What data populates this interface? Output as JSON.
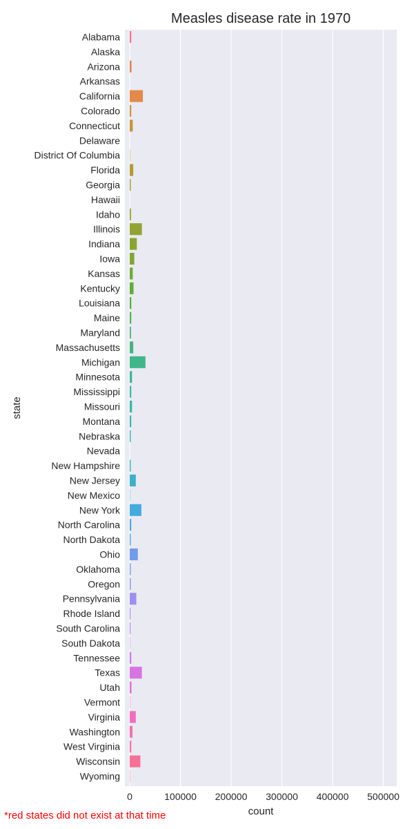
{
  "chart_data": {
    "type": "bar",
    "orientation": "horizontal",
    "title": "Measles disease rate in 1970",
    "xlabel": "count",
    "ylabel": "state",
    "xlim": [
      0,
      520000
    ],
    "x_ticks": [
      0,
      100000,
      200000,
      300000,
      400000,
      500000
    ],
    "grid": true,
    "background": "#eaeaf2",
    "categories": [
      "Alabama",
      "Alaska",
      "Arizona",
      "Arkansas",
      "California",
      "Colorado",
      "Connecticut",
      "Delaware",
      "District Of Columbia",
      "Florida",
      "Georgia",
      "Hawaii",
      "Idaho",
      "Illinois",
      "Indiana",
      "Iowa",
      "Kansas",
      "Kentucky",
      "Louisiana",
      "Maine",
      "Maryland",
      "Massachusetts",
      "Michigan",
      "Minnesota",
      "Mississippi",
      "Missouri",
      "Montana",
      "Nebraska",
      "Nevada",
      "New Hampshire",
      "New Jersey",
      "New Mexico",
      "New York",
      "North Carolina",
      "North Dakota",
      "Ohio",
      "Oklahoma",
      "Oregon",
      "Pennsylvania",
      "Rhode Island",
      "South Carolina",
      "South Dakota",
      "Tennessee",
      "Texas",
      "Utah",
      "Vermont",
      "Virginia",
      "Washington",
      "West Virginia",
      "Wisconsin",
      "Wyoming"
    ],
    "values": [
      3000,
      0,
      3500,
      0,
      26000,
      3000,
      6000,
      0,
      500,
      7000,
      2000,
      0,
      2500,
      24000,
      14000,
      9000,
      6000,
      7500,
      3000,
      3000,
      2500,
      7000,
      31000,
      4500,
      3000,
      4500,
      3000,
      2000,
      0,
      2000,
      12000,
      500,
      23000,
      3000,
      2000,
      16000,
      2000,
      2000,
      13000,
      1500,
      1500,
      500,
      3000,
      24000,
      3500,
      500,
      12000,
      5500,
      3000,
      21000,
      500
    ],
    "colors": [
      "#f77189",
      "#f7754f",
      "#e8834a",
      "#dd8a32",
      "#e38949",
      "#d1913a",
      "#c69534",
      "#c09737",
      "#b89a31",
      "#b39c32",
      "#a89d32",
      "#a1a032",
      "#99a232",
      "#93a332",
      "#8aa532",
      "#7fa732",
      "#6fab32",
      "#5dae33",
      "#50b034",
      "#4bb352",
      "#48b46c",
      "#45b57c",
      "#40b68b",
      "#3db697",
      "#3bb6a2",
      "#38b7a9",
      "#37b6b0",
      "#38b5b8",
      "#39b4bf",
      "#3bb2c5",
      "#3db0cd",
      "#3eaed6",
      "#44abdf",
      "#4ca7e4",
      "#5ea2ea",
      "#709ceb",
      "#819aed",
      "#8e94ef",
      "#9b91f0",
      "#a88cef",
      "#b585ee",
      "#c280ec",
      "#cc78eb",
      "#d774e4",
      "#e46fd6",
      "#ec6fcb",
      "#f16fbd",
      "#f470b0",
      "#f571a3",
      "#f67195",
      "#f77189"
    ]
  },
  "footnote": "*red states did not exist at that time"
}
